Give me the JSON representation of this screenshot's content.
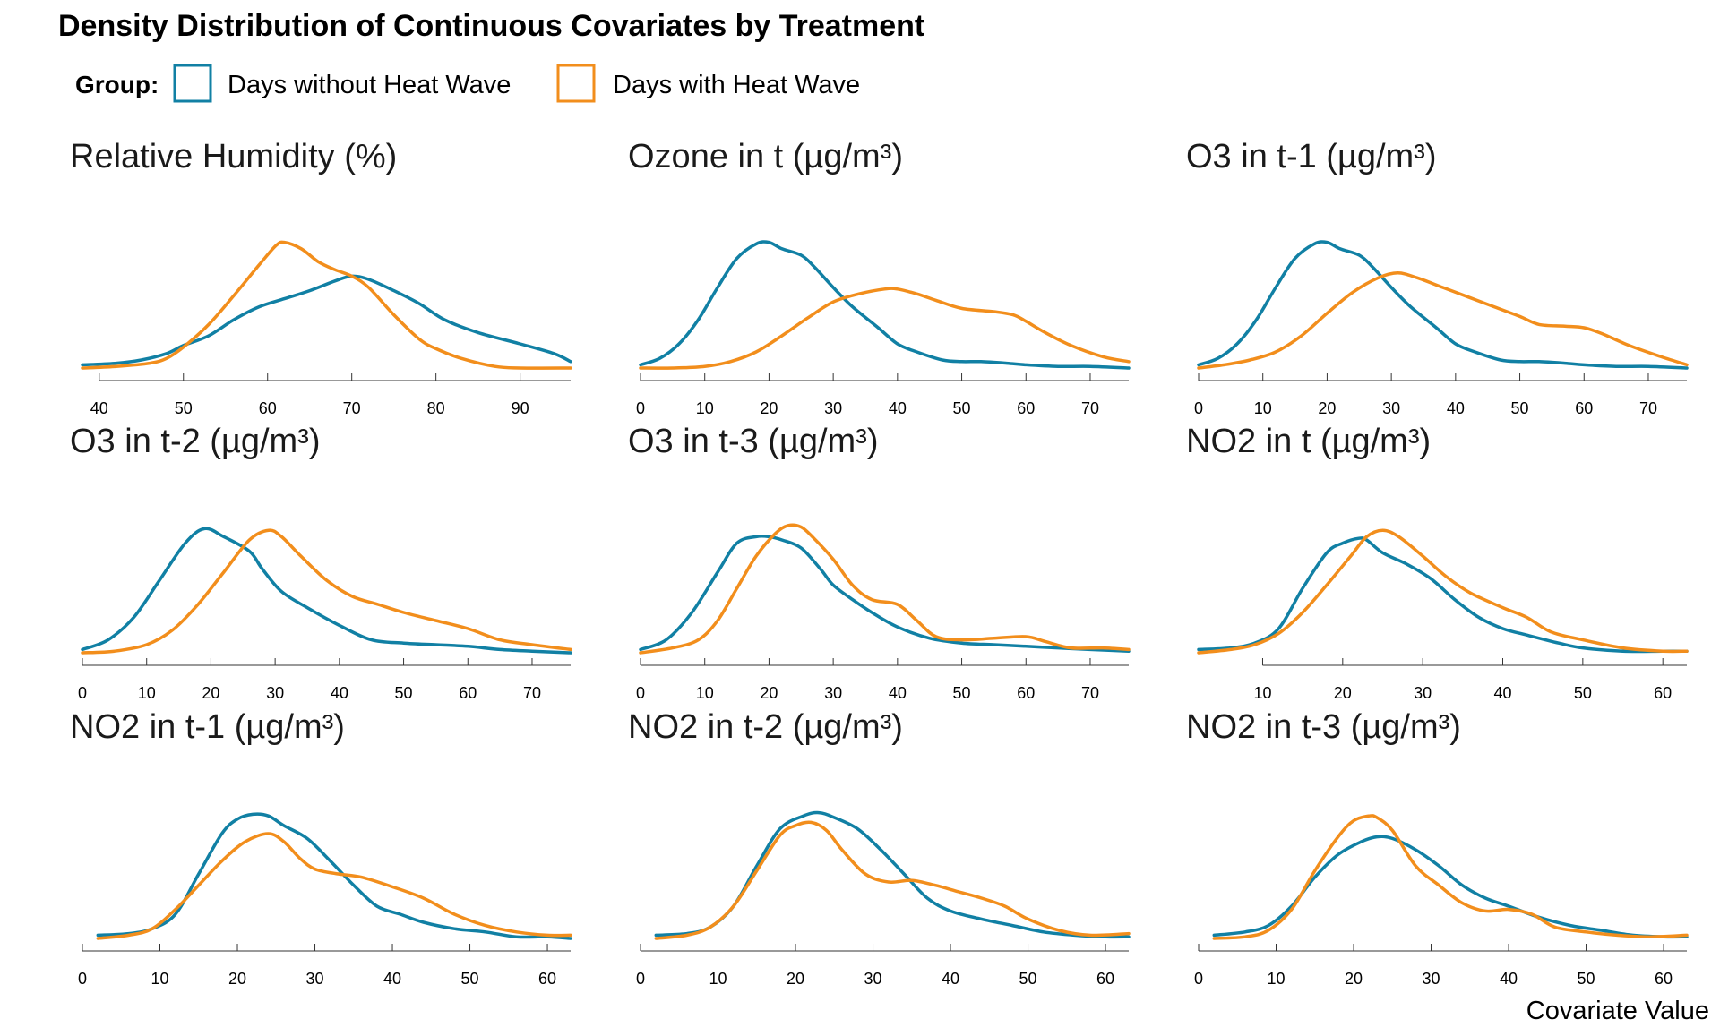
{
  "chart_data": {
    "type": "line",
    "title": "Density Distribution of Continuous Covariates by Treatment",
    "xlabel": "Covariate Value",
    "ylabel": "",
    "legend": {
      "title": "Group:",
      "placement": "top-left",
      "entries": [
        {
          "name": "Days without Heat Wave",
          "color": "#1180A4"
        },
        {
          "name": "Days with Heat Wave",
          "color": "#F28E1C"
        }
      ]
    },
    "panels": [
      {
        "title": "Relative Humidity (%)",
        "xlim": [
          38,
          96
        ],
        "ticks": [
          40,
          50,
          60,
          70,
          80,
          90
        ],
        "series": [
          {
            "name": "Days without Heat Wave",
            "x": [
              38,
              42,
              45,
              48,
              50,
              53,
              56,
              59,
              62,
              65,
              68,
              70,
              72,
              75,
              78,
              81,
              85,
              90,
              94,
              96
            ],
            "y": [
              0.02,
              0.03,
              0.05,
              0.09,
              0.14,
              0.2,
              0.3,
              0.38,
              0.43,
              0.48,
              0.54,
              0.57,
              0.55,
              0.48,
              0.4,
              0.3,
              0.22,
              0.15,
              0.09,
              0.04
            ]
          },
          {
            "name": "Days with Heat Wave",
            "x": [
              38,
              42,
              46,
              48,
              50,
              53,
              56,
              59,
              61,
              62,
              64,
              66,
              68,
              70,
              72,
              75,
              78,
              80,
              83,
              87,
              90,
              96
            ],
            "y": [
              0.0,
              0.01,
              0.03,
              0.06,
              0.13,
              0.27,
              0.45,
              0.64,
              0.76,
              0.78,
              0.74,
              0.66,
              0.61,
              0.57,
              0.5,
              0.33,
              0.18,
              0.12,
              0.06,
              0.01,
              0.0,
              0.0
            ]
          }
        ]
      },
      {
        "title": "Ozone in t (µg/m³)",
        "xlim": [
          0,
          76
        ],
        "ticks": [
          0,
          10,
          20,
          30,
          40,
          50,
          60,
          70
        ],
        "series": [
          {
            "name": "Days without Heat Wave",
            "x": [
              0,
              3,
              6,
              9,
              12,
              15,
              18,
              20,
              22,
              25,
              27,
              30,
              33,
              37,
              40,
              43,
              47,
              50,
              53,
              57,
              60,
              65,
              70,
              76
            ],
            "y": [
              0.02,
              0.06,
              0.15,
              0.3,
              0.5,
              0.68,
              0.77,
              0.78,
              0.74,
              0.7,
              0.63,
              0.5,
              0.38,
              0.25,
              0.15,
              0.1,
              0.05,
              0.04,
              0.04,
              0.03,
              0.02,
              0.01,
              0.01,
              0.0
            ]
          },
          {
            "name": "Days with Heat Wave",
            "x": [
              0,
              5,
              10,
              14,
              18,
              22,
              26,
              30,
              34,
              38,
              40,
              43,
              46,
              50,
              55,
              58,
              60,
              63,
              67,
              72,
              76
            ],
            "y": [
              0.0,
              0.0,
              0.01,
              0.04,
              0.1,
              0.2,
              0.31,
              0.41,
              0.46,
              0.49,
              0.49,
              0.46,
              0.42,
              0.37,
              0.35,
              0.33,
              0.29,
              0.22,
              0.14,
              0.07,
              0.04
            ]
          }
        ]
      },
      {
        "title": "O3 in t-1 (µg/m³)",
        "xlim": [
          0,
          76
        ],
        "ticks": [
          0,
          10,
          20,
          30,
          40,
          50,
          60,
          70
        ],
        "series": [
          {
            "name": "Days without Heat Wave",
            "x": [
              0,
              3,
              6,
              9,
              12,
              15,
              18,
              20,
              22,
              25,
              27,
              30,
              33,
              37,
              40,
              43,
              47,
              50,
              53,
              57,
              60,
              65,
              70,
              76
            ],
            "y": [
              0.02,
              0.06,
              0.15,
              0.3,
              0.5,
              0.68,
              0.77,
              0.78,
              0.74,
              0.7,
              0.63,
              0.5,
              0.38,
              0.25,
              0.15,
              0.1,
              0.05,
              0.04,
              0.04,
              0.03,
              0.02,
              0.01,
              0.01,
              0.0
            ]
          },
          {
            "name": "Days with Heat Wave",
            "x": [
              0,
              4,
              8,
              12,
              16,
              20,
              24,
              28,
              31,
              34,
              38,
              42,
              46,
              50,
              53,
              57,
              60,
              63,
              67,
              72,
              76
            ],
            "y": [
              0.0,
              0.02,
              0.05,
              0.1,
              0.2,
              0.34,
              0.47,
              0.56,
              0.59,
              0.56,
              0.5,
              0.44,
              0.38,
              0.32,
              0.27,
              0.26,
              0.25,
              0.21,
              0.14,
              0.07,
              0.02
            ]
          }
        ]
      },
      {
        "title": "O3 in t-2 (µg/m³)",
        "xlim": [
          0,
          76
        ],
        "ticks": [
          0,
          10,
          20,
          30,
          40,
          50,
          60,
          70
        ],
        "series": [
          {
            "name": "Days without Heat Wave",
            "x": [
              0,
              4,
              8,
              12,
              16,
              19,
              22,
              26,
              28,
              31,
              35,
              40,
              45,
              50,
              55,
              60,
              65,
              70,
              76
            ],
            "y": [
              0.02,
              0.08,
              0.22,
              0.45,
              0.68,
              0.77,
              0.72,
              0.63,
              0.52,
              0.38,
              0.28,
              0.17,
              0.08,
              0.06,
              0.05,
              0.04,
              0.02,
              0.01,
              0.0
            ]
          },
          {
            "name": "Days with Heat Wave",
            "x": [
              0,
              5,
              10,
              14,
              18,
              22,
              26,
              29,
              31,
              34,
              38,
              42,
              46,
              50,
              55,
              60,
              65,
              70,
              76
            ],
            "y": [
              0.0,
              0.01,
              0.05,
              0.14,
              0.3,
              0.5,
              0.7,
              0.76,
              0.72,
              0.6,
              0.45,
              0.35,
              0.3,
              0.25,
              0.2,
              0.15,
              0.08,
              0.05,
              0.02
            ]
          }
        ]
      },
      {
        "title": "O3 in t-3 (µg/m³)",
        "xlim": [
          0,
          76
        ],
        "ticks": [
          0,
          10,
          20,
          30,
          40,
          50,
          60,
          70
        ],
        "series": [
          {
            "name": "Days without Heat Wave",
            "x": [
              0,
              4,
              8,
              12,
              15,
              18,
              20,
              22,
              25,
              28,
              30,
              33,
              36,
              40,
              45,
              50,
              55,
              60,
              65,
              70,
              76
            ],
            "y": [
              0.02,
              0.08,
              0.25,
              0.5,
              0.68,
              0.72,
              0.72,
              0.7,
              0.65,
              0.52,
              0.42,
              0.33,
              0.25,
              0.16,
              0.09,
              0.06,
              0.05,
              0.04,
              0.03,
              0.02,
              0.01
            ]
          },
          {
            "name": "Days with Heat Wave",
            "x": [
              0,
              5,
              9,
              12,
              15,
              18,
              21,
              23,
              25,
              27,
              30,
              33,
              36,
              40,
              43,
              46,
              50,
              55,
              60,
              63,
              67,
              72,
              76
            ],
            "y": [
              0.0,
              0.03,
              0.08,
              0.2,
              0.4,
              0.6,
              0.74,
              0.79,
              0.78,
              0.71,
              0.58,
              0.42,
              0.33,
              0.3,
              0.2,
              0.1,
              0.08,
              0.09,
              0.1,
              0.07,
              0.03,
              0.03,
              0.02
            ]
          }
        ]
      },
      {
        "title": "NO2 in t (µg/m³)",
        "xlim": [
          2,
          63
        ],
        "ticks": [
          10,
          20,
          30,
          40,
          50,
          60
        ],
        "series": [
          {
            "name": "Days without Heat Wave",
            "x": [
              2,
              6,
              9,
              12,
              15,
              18,
              20,
              22,
              23,
              25,
              28,
              31,
              34,
              37,
              40,
              43,
              47,
              50,
              55,
              60,
              63
            ],
            "y": [
              0.02,
              0.03,
              0.06,
              0.15,
              0.4,
              0.62,
              0.68,
              0.71,
              0.7,
              0.62,
              0.55,
              0.46,
              0.33,
              0.22,
              0.15,
              0.11,
              0.06,
              0.03,
              0.01,
              0.01,
              0.01
            ]
          },
          {
            "name": "Days with Heat Wave",
            "x": [
              2,
              6,
              9,
              12,
              15,
              18,
              21,
              23,
              25,
              27,
              30,
              33,
              36,
              40,
              43,
              46,
              50,
              55,
              60,
              63
            ],
            "y": [
              0.0,
              0.02,
              0.05,
              0.12,
              0.25,
              0.42,
              0.6,
              0.72,
              0.76,
              0.72,
              0.6,
              0.47,
              0.37,
              0.28,
              0.22,
              0.13,
              0.08,
              0.03,
              0.01,
              0.01
            ]
          }
        ]
      },
      {
        "title": "NO2 in t-1 (µg/m³)",
        "xlim": [
          0,
          63
        ],
        "ticks": [
          0,
          10,
          20,
          30,
          40,
          50,
          60
        ],
        "series": [
          {
            "name": "Days without Heat Wave",
            "x": [
              2,
              6,
              9,
              12,
              15,
              18,
              20,
              22,
              24,
              26,
              29,
              32,
              35,
              38,
              41,
              44,
              48,
              52,
              56,
              60,
              63
            ],
            "y": [
              0.02,
              0.03,
              0.06,
              0.15,
              0.4,
              0.65,
              0.74,
              0.77,
              0.76,
              0.7,
              0.62,
              0.48,
              0.33,
              0.2,
              0.15,
              0.1,
              0.06,
              0.04,
              0.01,
              0.01,
              0.0
            ]
          },
          {
            "name": "Days with Heat Wave",
            "x": [
              2,
              6,
              9,
              12,
              15,
              18,
              21,
              24,
              26,
              28,
              30,
              33,
              36,
              40,
              44,
              48,
              52,
              56,
              60,
              63
            ],
            "y": [
              0.0,
              0.02,
              0.06,
              0.18,
              0.33,
              0.48,
              0.6,
              0.65,
              0.6,
              0.5,
              0.43,
              0.4,
              0.38,
              0.32,
              0.25,
              0.15,
              0.08,
              0.04,
              0.02,
              0.02
            ]
          }
        ]
      },
      {
        "title": "NO2 in t-2 (µg/m³)",
        "xlim": [
          0,
          63
        ],
        "ticks": [
          0,
          10,
          20,
          30,
          40,
          50,
          60
        ],
        "series": [
          {
            "name": "Days without Heat Wave",
            "x": [
              2,
              6,
              9,
              12,
              15,
              18,
              21,
              23,
              25,
              28,
              31,
              34,
              37,
              40,
              44,
              48,
              52,
              56,
              60,
              63
            ],
            "y": [
              0.02,
              0.03,
              0.07,
              0.2,
              0.45,
              0.68,
              0.76,
              0.78,
              0.75,
              0.68,
              0.55,
              0.4,
              0.25,
              0.17,
              0.12,
              0.08,
              0.04,
              0.02,
              0.01,
              0.01
            ]
          },
          {
            "name": "Days with Heat Wave",
            "x": [
              2,
              6,
              9,
              12,
              15,
              18,
              20,
              22,
              24,
              26,
              29,
              32,
              35,
              38,
              41,
              44,
              47,
              50,
              54,
              58,
              63
            ],
            "y": [
              0.0,
              0.02,
              0.07,
              0.2,
              0.42,
              0.64,
              0.7,
              0.72,
              0.67,
              0.55,
              0.4,
              0.35,
              0.36,
              0.33,
              0.29,
              0.25,
              0.2,
              0.12,
              0.05,
              0.02,
              0.03
            ]
          }
        ]
      },
      {
        "title": "NO2 in t-3 (µg/m³)",
        "xlim": [
          0,
          63
        ],
        "ticks": [
          0,
          10,
          20,
          30,
          40,
          50,
          60
        ],
        "series": [
          {
            "name": "Days without Heat Wave",
            "x": [
              2,
              6,
              9,
              12,
              15,
              18,
              21,
              23,
              25,
              28,
              31,
              34,
              37,
              40,
              44,
              48,
              52,
              56,
              60,
              63
            ],
            "y": [
              0.02,
              0.04,
              0.08,
              0.2,
              0.38,
              0.52,
              0.6,
              0.63,
              0.62,
              0.55,
              0.45,
              0.33,
              0.25,
              0.2,
              0.13,
              0.08,
              0.05,
              0.02,
              0.01,
              0.01
            ]
          },
          {
            "name": "Days with Heat Wave",
            "x": [
              2,
              6,
              9,
              12,
              15,
              18,
              20,
              22,
              23,
              25,
              28,
              31,
              34,
              37,
              40,
              43,
              46,
              50,
              54,
              58,
              63
            ],
            "y": [
              0.0,
              0.01,
              0.05,
              0.18,
              0.42,
              0.63,
              0.73,
              0.76,
              0.75,
              0.67,
              0.45,
              0.33,
              0.22,
              0.17,
              0.18,
              0.15,
              0.07,
              0.04,
              0.02,
              0.01,
              0.02
            ]
          }
        ]
      }
    ]
  }
}
